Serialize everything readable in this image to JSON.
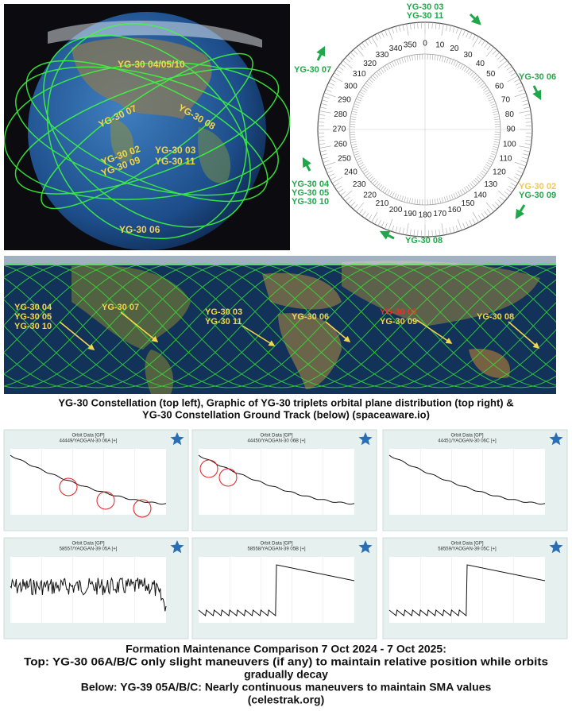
{
  "globe": {
    "labels": [
      "YG-30 04/05/10",
      "YG-30 07",
      "YG-30 08",
      "YG-30 03",
      "YG-30 11",
      "YG-30 02",
      "YG-30 09",
      "YG-30 06"
    ]
  },
  "dial": {
    "degrees": [
      0,
      10,
      20,
      30,
      40,
      50,
      60,
      70,
      80,
      90,
      100,
      110,
      120,
      130,
      140,
      150,
      160,
      170,
      180,
      190,
      200,
      210,
      220,
      230,
      240,
      250,
      260,
      270,
      280,
      290,
      300,
      310,
      320,
      330,
      340,
      350
    ],
    "labels": [
      "YG-30 03",
      "YG-30 11",
      "YG-30 07",
      "YG-30 06",
      "YG-30 04",
      "YG-30 05",
      "YG-30 10",
      "YG-30 02",
      "YG-30 09",
      "YG-30 08"
    ]
  },
  "ground_track": {
    "labels": [
      "YG-30 04",
      "YG-30 05",
      "YG-30 10",
      "YG-30 07",
      "YG-30 03",
      "YG-30 11",
      "YG-30 06",
      "YG-30 02",
      "YG-30 09",
      "YG-30 08"
    ]
  },
  "caption": [
    "YG-30 Constellation (top left), Graphic of YG-30 triplets orbital plane distribution (top right) &",
    "YG-30 Constellation Ground Track (below)  (spaceaware.io)"
  ],
  "panels": [
    {
      "title": "Orbit Data [GP]",
      "object": "44449/YAOGAN-30 06A [+]"
    },
    {
      "title": "Orbit Data [GP]",
      "object": "44450/YAOGAN-30 06B [+]"
    },
    {
      "title": "Orbit Data [GP]",
      "object": "44451/YAOGAN-30 06C [+]"
    },
    {
      "title": "Orbit Data [GP]",
      "object": "58557/YAOGAN-39 05A [+]"
    },
    {
      "title": "Orbit Data [GP]",
      "object": "58558/YAOGAN-39 05B [+]"
    },
    {
      "title": "Orbit Data [GP]",
      "object": "58559/YAOGAN-39 05C [+]"
    }
  ],
  "footer": [
    "Formation Maintenance Comparison 7 Oct 2024 - 7 Oct 2025:",
    "Top:  YG-30 06A/B/C only slight maneuvers (if any) to maintain relative position while orbits",
    "gradually decay",
    "Below: YG-39 05A/B/C: Nearly continuous maneuvers to maintain SMA values",
    "(celestrak.org)"
  ]
}
